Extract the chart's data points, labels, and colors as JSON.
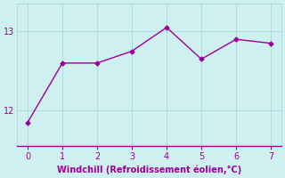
{
  "x": [
    0,
    1,
    2,
    3,
    4,
    5,
    6,
    7
  ],
  "y": [
    11.85,
    12.6,
    12.6,
    12.75,
    13.05,
    12.65,
    12.9,
    12.85
  ],
  "line_color": "#990099",
  "marker": "D",
  "marker_size": 2.5,
  "line_width": 1.0,
  "background_color": "#cff0f0",
  "grid_color": "#aadddd",
  "xlabel": "Windchill (Refroidissement éolien,°C)",
  "xlabel_color": "#990099",
  "xlabel_fontsize": 7,
  "tick_color": "#990099",
  "tick_fontsize": 7,
  "yticks": [
    12,
    13
  ],
  "xticks": [
    0,
    1,
    2,
    3,
    4,
    5,
    6,
    7
  ],
  "ylim": [
    11.55,
    13.35
  ],
  "xlim": [
    -0.3,
    7.3
  ],
  "spine_color": "#990099"
}
